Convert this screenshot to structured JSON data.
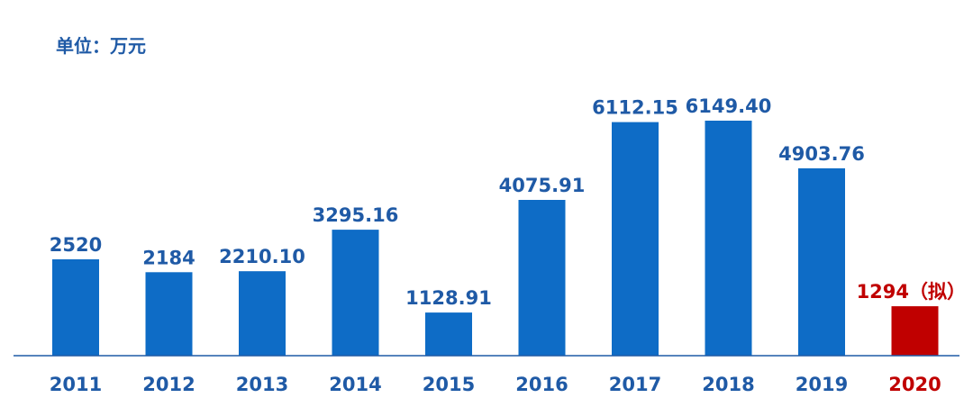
{
  "chart_data": {
    "type": "bar",
    "unit_label": "单位：万元",
    "categories": [
      "2011",
      "2012",
      "2013",
      "2014",
      "2015",
      "2016",
      "2017",
      "2018",
      "2019",
      "2020"
    ],
    "values": [
      2520,
      2184,
      2210.1,
      3295.16,
      1128.91,
      4075.91,
      6112.15,
      6149.4,
      4903.76,
      1294
    ],
    "value_labels": [
      "2520",
      "2184",
      "2210.10",
      "3295.16",
      "1128.91",
      "4075.91",
      "6112.15",
      "6149.40",
      "4903.76",
      "1294（拟）"
    ],
    "highlight_index": 9,
    "ylim": [
      0,
      6149.4
    ],
    "grid": false,
    "colors": {
      "bar": "#0E6CC6",
      "highlight_bar": "#C00000",
      "text": "#1F5AA6",
      "highlight_text": "#C00000",
      "axis": "#1F5AA6"
    }
  }
}
